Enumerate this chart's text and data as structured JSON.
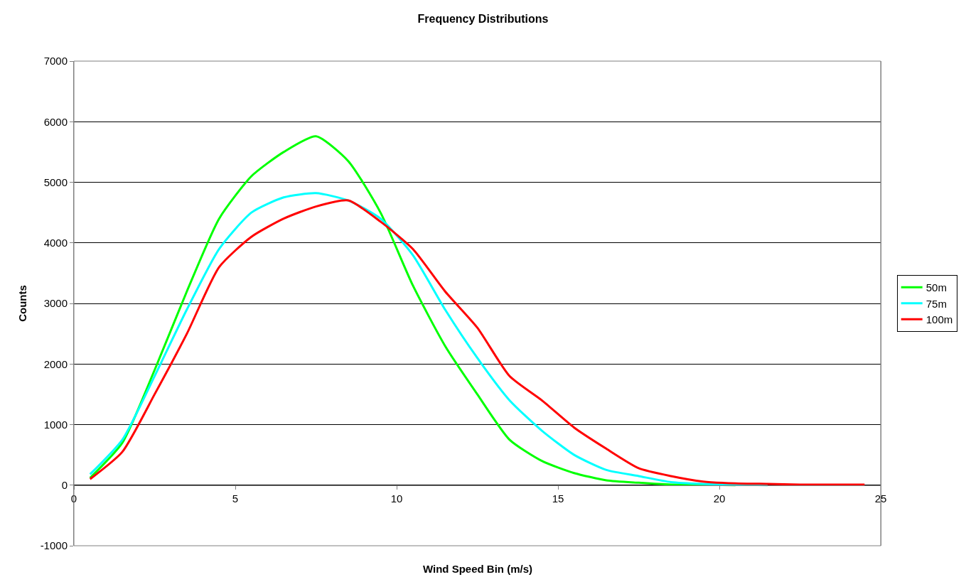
{
  "chart_data": {
    "type": "line",
    "title": "Frequency Distributions",
    "xlabel": "Wind Speed Bin (m/s)",
    "ylabel": "Counts",
    "x": [
      0.5,
      1.5,
      2.5,
      3.5,
      4.5,
      5.5,
      6.5,
      7.5,
      8.5,
      9.5,
      10.5,
      11.5,
      12.5,
      13.5,
      14.5,
      15.5,
      16.5,
      17.5,
      18.5,
      19.5,
      20.5,
      21.5,
      22.5,
      23.5,
      24.5
    ],
    "series": [
      {
        "name": "50m",
        "color": "#00ff00",
        "values": [
          120,
          700,
          1900,
          3200,
          4400,
          5100,
          5500,
          5760,
          5350,
          4500,
          3300,
          2300,
          1500,
          750,
          400,
          200,
          80,
          40,
          10,
          10,
          0,
          null,
          null,
          null,
          null
        ]
      },
      {
        "name": "75m",
        "color": "#00ffff",
        "values": [
          180,
          750,
          1800,
          2900,
          3900,
          4500,
          4750,
          4820,
          4700,
          4400,
          3800,
          2900,
          2100,
          1400,
          900,
          500,
          250,
          150,
          50,
          20,
          10,
          0,
          null,
          null,
          null
        ]
      },
      {
        "name": "100m",
        "color": "#ff0000",
        "values": [
          100,
          550,
          1500,
          2500,
          3600,
          4100,
          4400,
          4600,
          4700,
          4350,
          3900,
          3200,
          2600,
          1800,
          1400,
          950,
          600,
          280,
          150,
          60,
          30,
          20,
          10,
          10,
          10
        ]
      }
    ],
    "xlim": [
      0,
      25
    ],
    "xticks": [
      0,
      5,
      10,
      15,
      20,
      25
    ],
    "ylim": [
      -1000,
      7000
    ],
    "yticks": [
      -1000,
      0,
      1000,
      2000,
      3000,
      4000,
      5000,
      6000,
      7000
    ],
    "grid": "y",
    "legend": "right",
    "marker": "none",
    "line_style": "solid"
  }
}
